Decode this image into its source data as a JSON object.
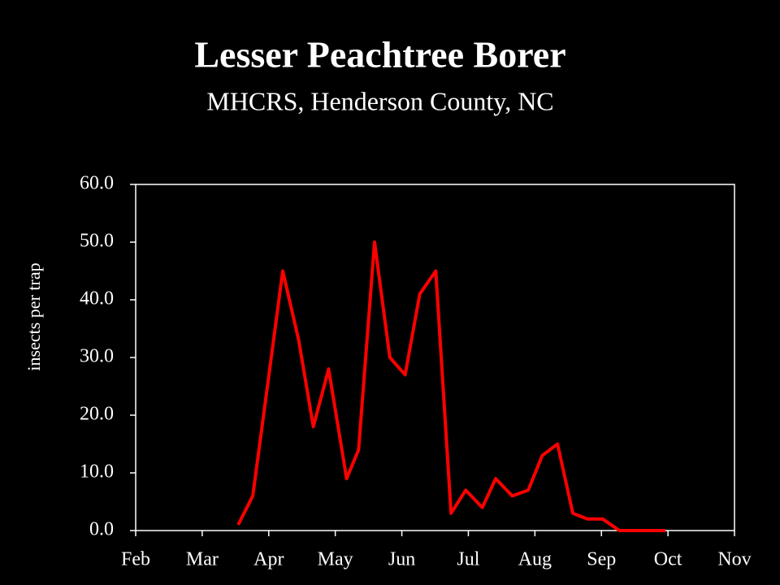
{
  "chart_data": {
    "type": "line",
    "title": "Lesser Peachtree Borer",
    "subtitle": "MHCRS, Henderson County, NC",
    "y_label": "insects per trap",
    "x": [
      3.54,
      3.76,
      3.98,
      4.21,
      4.45,
      4.67,
      4.9,
      5.17,
      5.35,
      5.59,
      5.82,
      6.05,
      6.27,
      6.51,
      6.74,
      6.96,
      7.21,
      7.41,
      7.66,
      7.9,
      8.11,
      8.34,
      8.57,
      8.79,
      9.02,
      9.27,
      9.49,
      9.72,
      9.96
    ],
    "series": [
      {
        "color": "#ff0000",
        "values": [
          1,
          6,
          25,
          45,
          33,
          18,
          28,
          9,
          14,
          50,
          30,
          27,
          41,
          45,
          3,
          7,
          4,
          9,
          6,
          7,
          13,
          15,
          3,
          2,
          2,
          0,
          0,
          0,
          0
        ]
      }
    ],
    "xlim": [
      2,
      11
    ],
    "xticks": [
      {
        "value": 2,
        "label": "Feb"
      },
      {
        "value": 3,
        "label": "Mar"
      },
      {
        "value": 4,
        "label": "Apr"
      },
      {
        "value": 5,
        "label": "May"
      },
      {
        "value": 6,
        "label": "Jun"
      },
      {
        "value": 7,
        "label": "Jul"
      },
      {
        "value": 8,
        "label": "Aug"
      },
      {
        "value": 9,
        "label": "Sep"
      },
      {
        "value": 10,
        "label": "Oct"
      },
      {
        "value": 11,
        "label": "Nov"
      }
    ],
    "ylim": [
      0,
      60
    ],
    "yticks": [
      {
        "value": 0,
        "label": "0.0"
      },
      {
        "value": 10,
        "label": "10.0"
      },
      {
        "value": 20,
        "label": "20.0"
      },
      {
        "value": 30,
        "label": "30.0"
      },
      {
        "value": 40,
        "label": "40.0"
      },
      {
        "value": 50,
        "label": "50.0"
      },
      {
        "value": 60,
        "label": "60.0"
      }
    ],
    "grid": false
  }
}
